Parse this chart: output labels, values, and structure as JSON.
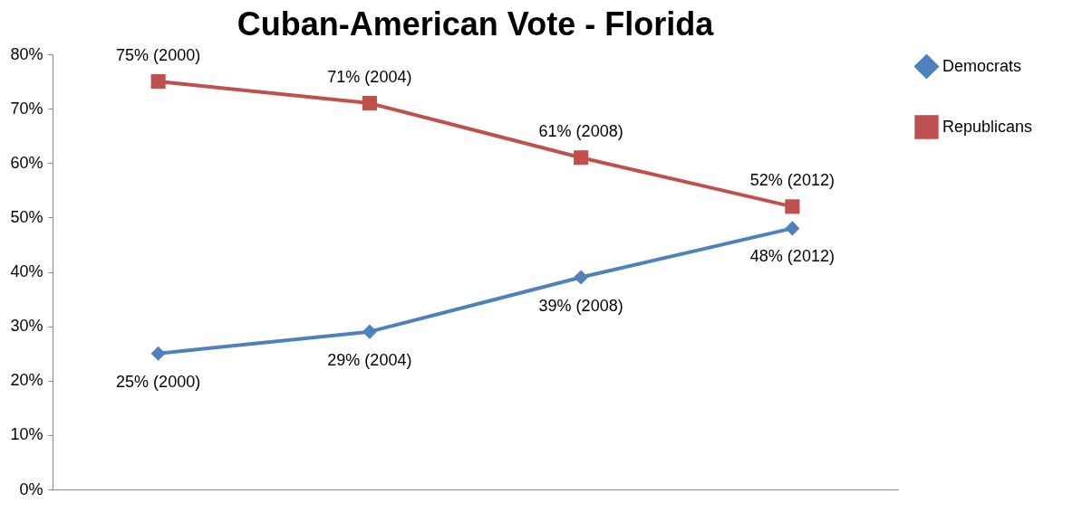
{
  "chart_data": {
    "type": "line",
    "title": "Cuban-American Vote - Florida",
    "categories": [
      null,
      null,
      null,
      null
    ],
    "series": [
      {
        "name": "Democrats",
        "color": "#4f81bd",
        "marker": "diamond",
        "values": [
          25,
          29,
          39,
          48
        ],
        "value_labels": [
          "25% (2000)",
          "29% (2004)",
          "39% (2008)",
          "48% (2012)"
        ]
      },
      {
        "name": "Republicans",
        "color": "#c0504d",
        "marker": "square",
        "values": [
          75,
          71,
          61,
          52
        ],
        "value_labels": [
          "75% (2000)",
          "71% (2004)",
          "61% (2008)",
          "52% (2012)"
        ]
      }
    ],
    "ylim": [
      0,
      80
    ],
    "yticks": [
      {
        "value": 0,
        "label": "0%"
      },
      {
        "value": 10,
        "label": "10%"
      },
      {
        "value": 20,
        "label": "20%"
      },
      {
        "value": 30,
        "label": "30%"
      },
      {
        "value": 40,
        "label": "40%"
      },
      {
        "value": 50,
        "label": "50%"
      },
      {
        "value": 60,
        "label": "60%"
      },
      {
        "value": 70,
        "label": "70%"
      },
      {
        "value": 80,
        "label": "80%"
      }
    ],
    "grid": false,
    "legend": "right",
    "line_style": "solid"
  }
}
